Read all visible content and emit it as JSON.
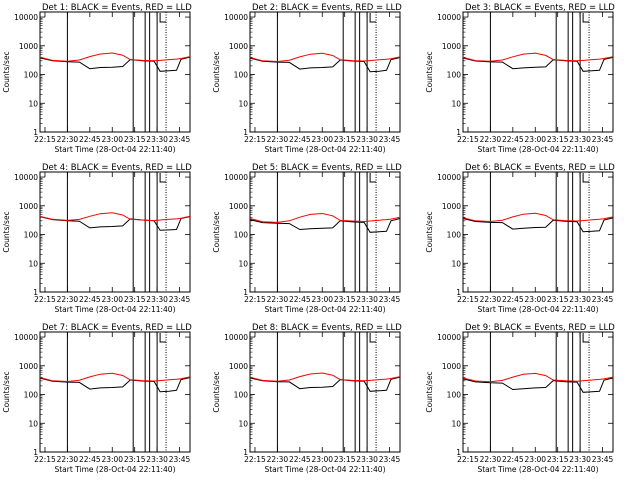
{
  "colors": {
    "events": "#000000",
    "lld": "#ff0000",
    "axes": "#000000",
    "background": "#ffffff"
  },
  "shared": {
    "ylabel": "Counts/sec",
    "xlabel": "Start Time (28-Oct-04 22:11:40)",
    "x_ticks": [
      "22:15",
      "22:30",
      "22:45",
      "23:00",
      "23:15",
      "23:30",
      "23:45"
    ],
    "y_ticks": [
      "1",
      "10",
      "100",
      "1000",
      "10000"
    ]
  },
  "chart_data": [
    {
      "type": "line",
      "title": "Det 1: BLACK = Events, RED = LLD",
      "xlabel": "Start Time (28-Oct-04 22:11:40)",
      "ylabel": "Counts/sec",
      "y_scale": "log",
      "xlim": [
        "22:11:40",
        "23:52:00"
      ],
      "ylim": [
        1,
        15000
      ],
      "x_ticks": [
        "22:15",
        "22:30",
        "22:45",
        "23:00",
        "23:15",
        "23:30",
        "23:45"
      ],
      "vertical_lines_solid": [
        "22:30",
        "23:14",
        "23:22",
        "23:25",
        "23:30"
      ],
      "vertical_lines_dotted": [
        "23:36"
      ],
      "series": [
        {
          "name": "BLACK = Events",
          "x": [
            "22:11:40",
            "22:20",
            "22:30",
            "22:38",
            "22:45",
            "22:52",
            "23:00",
            "23:07",
            "23:12",
            "23:20",
            "23:28",
            "23:32",
            "23:38",
            "23:43",
            "23:46",
            "23:52"
          ],
          "values": [
            380,
            300,
            280,
            270,
            160,
            175,
            180,
            190,
            330,
            300,
            290,
            130,
            135,
            140,
            340,
            400
          ]
        },
        {
          "name": "RED = LLD",
          "x": [
            "22:11:40",
            "22:20",
            "22:30",
            "22:38",
            "22:45",
            "22:52",
            "23:00",
            "23:07",
            "23:12",
            "23:20",
            "23:28",
            "23:32",
            "23:38",
            "23:43",
            "23:46",
            "23:52"
          ],
          "values": [
            400,
            310,
            290,
            320,
            420,
            520,
            560,
            470,
            330,
            310,
            300,
            310,
            330,
            345,
            360,
            420
          ]
        }
      ]
    },
    {
      "type": "line",
      "title": "Det 2: BLACK = Events, RED = LLD",
      "xlabel": "Start Time (28-Oct-04 22:11:40)",
      "ylabel": "Counts/sec",
      "y_scale": "log",
      "xlim": [
        "22:11:40",
        "23:52:00"
      ],
      "ylim": [
        1,
        15000
      ],
      "x_ticks": [
        "22:15",
        "22:30",
        "22:45",
        "23:00",
        "23:15",
        "23:30",
        "23:45"
      ],
      "vertical_lines_solid": [
        "22:30",
        "23:14",
        "23:22",
        "23:25",
        "23:30"
      ],
      "vertical_lines_dotted": [
        "23:36"
      ],
      "series": [
        {
          "name": "BLACK = Events",
          "x": [
            "22:11:40",
            "22:20",
            "22:30",
            "22:38",
            "22:45",
            "22:52",
            "23:00",
            "23:07",
            "23:12",
            "23:20",
            "23:28",
            "23:32",
            "23:38",
            "23:43",
            "23:46",
            "23:52"
          ],
          "values": [
            370,
            290,
            270,
            265,
            155,
            170,
            175,
            185,
            320,
            295,
            285,
            125,
            130,
            140,
            330,
            390
          ]
        },
        {
          "name": "RED = LLD",
          "x": [
            "22:11:40",
            "22:20",
            "22:30",
            "22:38",
            "22:45",
            "22:52",
            "23:00",
            "23:07",
            "23:12",
            "23:20",
            "23:28",
            "23:32",
            "23:38",
            "23:43",
            "23:46",
            "23:52"
          ],
          "values": [
            390,
            300,
            285,
            315,
            410,
            510,
            550,
            460,
            325,
            305,
            295,
            305,
            325,
            340,
            355,
            410
          ]
        }
      ]
    },
    {
      "type": "line",
      "title": "Det 3: BLACK = Events, RED = LLD",
      "xlabel": "Start Time (28-Oct-04 22:11:40)",
      "ylabel": "Counts/sec",
      "y_scale": "log",
      "xlim": [
        "22:11:40",
        "23:52:00"
      ],
      "ylim": [
        1,
        15000
      ],
      "x_ticks": [
        "22:15",
        "22:30",
        "22:45",
        "23:00",
        "23:15",
        "23:30",
        "23:45"
      ],
      "vertical_lines_solid": [
        "22:30",
        "23:14",
        "23:22",
        "23:25",
        "23:30"
      ],
      "vertical_lines_dotted": [
        "23:36"
      ],
      "series": [
        {
          "name": "BLACK = Events",
          "x": [
            "22:11:40",
            "22:20",
            "22:30",
            "22:38",
            "22:45",
            "22:52",
            "23:00",
            "23:07",
            "23:12",
            "23:20",
            "23:28",
            "23:32",
            "23:38",
            "23:43",
            "23:46",
            "23:52"
          ],
          "values": [
            375,
            295,
            275,
            270,
            160,
            170,
            180,
            185,
            325,
            300,
            290,
            130,
            135,
            140,
            335,
            395
          ]
        },
        {
          "name": "RED = LLD",
          "x": [
            "22:11:40",
            "22:20",
            "22:30",
            "22:38",
            "22:45",
            "22:52",
            "23:00",
            "23:07",
            "23:12",
            "23:20",
            "23:28",
            "23:32",
            "23:38",
            "23:43",
            "23:46",
            "23:52"
          ],
          "values": [
            395,
            305,
            290,
            320,
            415,
            515,
            555,
            465,
            330,
            310,
            300,
            310,
            330,
            345,
            360,
            415
          ]
        }
      ]
    },
    {
      "type": "line",
      "title": "Det 4: BLACK = Events, RED = LLD",
      "xlabel": "Start Time (28-Oct-04 22:11:40)",
      "ylabel": "Counts/sec",
      "y_scale": "log",
      "xlim": [
        "22:11:40",
        "23:52:00"
      ],
      "ylim": [
        1,
        15000
      ],
      "x_ticks": [
        "22:15",
        "22:30",
        "22:45",
        "23:00",
        "23:15",
        "23:30",
        "23:45"
      ],
      "vertical_lines_solid": [
        "22:30",
        "23:14",
        "23:22",
        "23:25",
        "23:30"
      ],
      "vertical_lines_dotted": [
        "23:36"
      ],
      "series": [
        {
          "name": "BLACK = Events",
          "x": [
            "22:11:40",
            "22:20",
            "22:30",
            "22:38",
            "22:45",
            "22:52",
            "23:00",
            "23:07",
            "23:12",
            "23:20",
            "23:28",
            "23:32",
            "23:38",
            "23:43",
            "23:46",
            "23:52"
          ],
          "values": [
            420,
            330,
            300,
            290,
            170,
            185,
            190,
            200,
            350,
            320,
            300,
            140,
            145,
            150,
            360,
            420
          ]
        },
        {
          "name": "RED = LLD",
          "x": [
            "22:11:40",
            "22:20",
            "22:30",
            "22:38",
            "22:45",
            "22:52",
            "23:00",
            "23:07",
            "23:12",
            "23:20",
            "23:28",
            "23:32",
            "23:38",
            "23:43",
            "23:46",
            "23:52"
          ],
          "values": [
            430,
            340,
            310,
            335,
            430,
            530,
            570,
            480,
            340,
            320,
            305,
            320,
            340,
            350,
            370,
            430
          ]
        }
      ]
    },
    {
      "type": "line",
      "title": "Det 5: BLACK = Events, RED = LLD",
      "xlabel": "Start Time (28-Oct-04 22:11:40)",
      "ylabel": "Counts/sec",
      "y_scale": "log",
      "xlim": [
        "22:11:40",
        "23:52:00"
      ],
      "ylim": [
        1,
        15000
      ],
      "x_ticks": [
        "22:15",
        "22:30",
        "22:45",
        "23:00",
        "23:15",
        "23:30",
        "23:45"
      ],
      "vertical_lines_solid": [
        "22:30",
        "23:14",
        "23:22",
        "23:25",
        "23:30"
      ],
      "vertical_lines_dotted": [
        "23:36"
      ],
      "series": [
        {
          "name": "BLACK = Events",
          "x": [
            "22:11:40",
            "22:20",
            "22:30",
            "22:38",
            "22:45",
            "22:52",
            "23:00",
            "23:07",
            "23:12",
            "23:20",
            "23:28",
            "23:32",
            "23:38",
            "23:43",
            "23:46",
            "23:52"
          ],
          "values": [
            330,
            260,
            245,
            240,
            150,
            160,
            165,
            170,
            300,
            275,
            265,
            120,
            125,
            130,
            300,
            360
          ]
        },
        {
          "name": "RED = LLD",
          "x": [
            "22:11:40",
            "22:20",
            "22:30",
            "22:38",
            "22:45",
            "22:52",
            "23:00",
            "23:07",
            "23:12",
            "23:20",
            "23:28",
            "23:32",
            "23:38",
            "23:43",
            "23:46",
            "23:52"
          ],
          "values": [
            360,
            280,
            265,
            300,
            400,
            500,
            540,
            450,
            310,
            295,
            285,
            295,
            315,
            330,
            345,
            400
          ]
        }
      ]
    },
    {
      "type": "line",
      "title": "Det 6: BLACK = Events, RED = LLD",
      "xlabel": "Start Time (28-Oct-04 22:11:40)",
      "ylabel": "Counts/sec",
      "y_scale": "log",
      "xlim": [
        "22:11:40",
        "23:52:00"
      ],
      "ylim": [
        1,
        15000
      ],
      "x_ticks": [
        "22:15",
        "22:30",
        "22:45",
        "23:00",
        "23:15",
        "23:30",
        "23:45"
      ],
      "vertical_lines_solid": [
        "22:30",
        "23:14",
        "23:22",
        "23:25",
        "23:30"
      ],
      "vertical_lines_dotted": [
        "23:36"
      ],
      "series": [
        {
          "name": "BLACK = Events",
          "x": [
            "22:11:40",
            "22:20",
            "22:30",
            "22:38",
            "22:45",
            "22:52",
            "23:00",
            "23:07",
            "23:12",
            "23:20",
            "23:28",
            "23:32",
            "23:38",
            "23:43",
            "23:46",
            "23:52"
          ],
          "values": [
            360,
            285,
            265,
            260,
            155,
            165,
            175,
            180,
            315,
            290,
            280,
            125,
            130,
            135,
            320,
            380
          ]
        },
        {
          "name": "RED = LLD",
          "x": [
            "22:11:40",
            "22:20",
            "22:30",
            "22:38",
            "22:45",
            "22:52",
            "23:00",
            "23:07",
            "23:12",
            "23:20",
            "23:28",
            "23:32",
            "23:38",
            "23:43",
            "23:46",
            "23:52"
          ],
          "values": [
            385,
            300,
            285,
            315,
            410,
            510,
            550,
            460,
            325,
            305,
            295,
            305,
            325,
            340,
            355,
            410
          ]
        }
      ]
    },
    {
      "type": "line",
      "title": "Det 7: BLACK = Events, RED = LLD",
      "xlabel": "Start Time (28-Oct-04 22:11:40)",
      "ylabel": "Counts/sec",
      "y_scale": "log",
      "xlim": [
        "22:11:40",
        "23:52:00"
      ],
      "ylim": [
        1,
        15000
      ],
      "x_ticks": [
        "22:15",
        "22:30",
        "22:45",
        "23:00",
        "23:15",
        "23:30",
        "23:45"
      ],
      "vertical_lines_solid": [
        "22:30",
        "23:14",
        "23:22",
        "23:25",
        "23:30"
      ],
      "vertical_lines_dotted": [
        "23:36"
      ],
      "series": [
        {
          "name": "BLACK = Events",
          "x": [
            "22:11:40",
            "22:20",
            "22:30",
            "22:38",
            "22:45",
            "22:52",
            "23:00",
            "23:07",
            "23:12",
            "23:20",
            "23:28",
            "23:32",
            "23:38",
            "23:43",
            "23:46",
            "23:52"
          ],
          "values": [
            370,
            290,
            270,
            265,
            155,
            170,
            175,
            185,
            320,
            295,
            285,
            125,
            130,
            140,
            330,
            390
          ]
        },
        {
          "name": "RED = LLD",
          "x": [
            "22:11:40",
            "22:20",
            "22:30",
            "22:38",
            "22:45",
            "22:52",
            "23:00",
            "23:07",
            "23:12",
            "23:20",
            "23:28",
            "23:32",
            "23:38",
            "23:43",
            "23:46",
            "23:52"
          ],
          "values": [
            390,
            300,
            285,
            315,
            410,
            510,
            550,
            460,
            325,
            305,
            295,
            305,
            325,
            340,
            355,
            410
          ]
        }
      ]
    },
    {
      "type": "line",
      "title": "Det 8: BLACK = Events, RED = LLD",
      "xlabel": "Start Time (28-Oct-04 22:11:40)",
      "ylabel": "Counts/sec",
      "y_scale": "log",
      "xlim": [
        "22:11:40",
        "23:52:00"
      ],
      "ylim": [
        1,
        15000
      ],
      "x_ticks": [
        "22:15",
        "22:30",
        "22:45",
        "23:00",
        "23:15",
        "23:30",
        "23:45"
      ],
      "vertical_lines_solid": [
        "22:30",
        "23:14",
        "23:22",
        "23:25",
        "23:30"
      ],
      "vertical_lines_dotted": [
        "23:36"
      ],
      "series": [
        {
          "name": "BLACK = Events",
          "x": [
            "22:11:40",
            "22:20",
            "22:30",
            "22:38",
            "22:45",
            "22:52",
            "23:00",
            "23:07",
            "23:12",
            "23:20",
            "23:28",
            "23:32",
            "23:38",
            "23:43",
            "23:46",
            "23:52"
          ],
          "values": [
            380,
            300,
            280,
            275,
            160,
            175,
            180,
            190,
            330,
            300,
            290,
            130,
            135,
            140,
            340,
            400
          ]
        },
        {
          "name": "RED = LLD",
          "x": [
            "22:11:40",
            "22:20",
            "22:30",
            "22:38",
            "22:45",
            "22:52",
            "23:00",
            "23:07",
            "23:12",
            "23:20",
            "23:28",
            "23:32",
            "23:38",
            "23:43",
            "23:46",
            "23:52"
          ],
          "values": [
            400,
            310,
            290,
            320,
            420,
            520,
            560,
            470,
            330,
            310,
            300,
            310,
            330,
            345,
            360,
            420
          ]
        }
      ]
    },
    {
      "type": "line",
      "title": "Det 9: BLACK = Events, RED = LLD",
      "xlabel": "Start Time (28-Oct-04 22:11:40)",
      "ylabel": "Counts/sec",
      "y_scale": "log",
      "xlim": [
        "22:11:40",
        "23:52:00"
      ],
      "ylim": [
        1,
        15000
      ],
      "x_ticks": [
        "22:15",
        "22:30",
        "22:45",
        "23:00",
        "23:15",
        "23:30",
        "23:45"
      ],
      "vertical_lines_solid": [
        "22:30",
        "23:14",
        "23:22",
        "23:25",
        "23:30"
      ],
      "vertical_lines_dotted": [
        "23:36"
      ],
      "series": [
        {
          "name": "BLACK = Events",
          "x": [
            "22:11:40",
            "22:20",
            "22:30",
            "22:38",
            "22:45",
            "22:52",
            "23:00",
            "23:07",
            "23:12",
            "23:20",
            "23:28",
            "23:32",
            "23:38",
            "23:43",
            "23:46",
            "23:52"
          ],
          "values": [
            350,
            275,
            255,
            250,
            150,
            160,
            170,
            175,
            305,
            280,
            270,
            120,
            125,
            130,
            315,
            375
          ]
        },
        {
          "name": "RED = LLD",
          "x": [
            "22:11:40",
            "22:20",
            "22:30",
            "22:38",
            "22:45",
            "22:52",
            "23:00",
            "23:07",
            "23:12",
            "23:20",
            "23:28",
            "23:32",
            "23:38",
            "23:43",
            "23:46",
            "23:52"
          ],
          "values": [
            375,
            295,
            280,
            310,
            405,
            505,
            545,
            455,
            320,
            300,
            290,
            300,
            320,
            335,
            350,
            405
          ]
        }
      ]
    }
  ]
}
